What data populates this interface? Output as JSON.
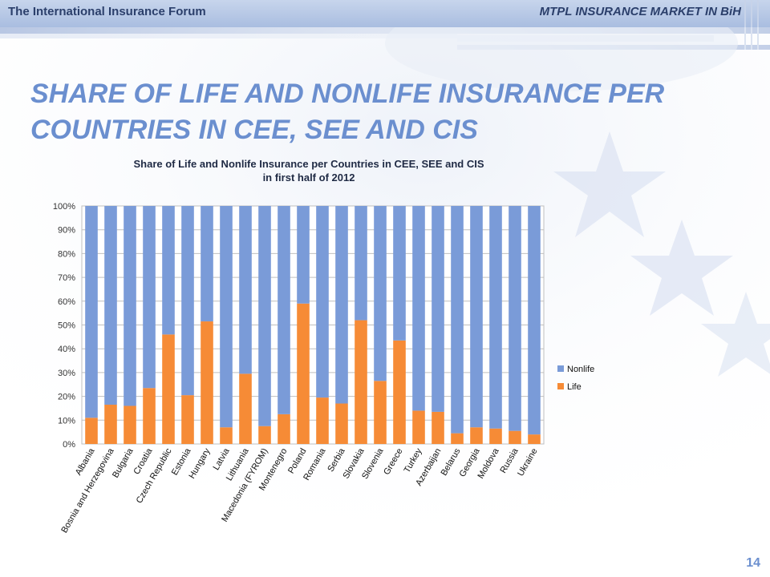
{
  "header": {
    "left_text": "The International Insurance Forum",
    "right_text": "MTPL INSURANCE MARKET IN BiH"
  },
  "slide": {
    "title_line1": "SHARE OF LIFE AND NONLIFE INSURANCE PER",
    "title_line2": "COUNTRIES IN CEE, SEE AND CIS",
    "page_number": "14"
  },
  "colors": {
    "nonlife": "#7a9bd8",
    "life": "#f68b36",
    "accent": "#6b8fcf",
    "header_text": "#2b3f6b"
  },
  "chart_data": {
    "type": "bar",
    "stacked": true,
    "title_line1": "Share of Life and Nonlife Insurance per Countries in CEE, SEE and CIS",
    "title_line2": "in first half of 2012",
    "categories": [
      "Albania",
      "Bosnia and Herzegovina",
      "Bulgaria",
      "Croatia",
      "Czech Republic",
      "Estonia",
      "Hungary",
      "Latvia",
      "Lithuania",
      "Macedonia (FYROM)",
      "Montenegro",
      "Poland",
      "Romania",
      "Serbia",
      "Slovakia",
      "Slovenia",
      "Greece",
      "Turkey",
      "Azerbaijan",
      "Belarus",
      "Georgia",
      "Moldova",
      "Russia",
      "Ukraine"
    ],
    "series": [
      {
        "name": "Life",
        "values": [
          11,
          16.5,
          16,
          23.5,
          46,
          20.5,
          51.5,
          7,
          29.5,
          7.5,
          12.5,
          59,
          19.5,
          17,
          52,
          26.5,
          43.5,
          14,
          13.5,
          4.5,
          7,
          6.5,
          5.5,
          4
        ]
      },
      {
        "name": "Nonlife",
        "values": [
          89,
          83.5,
          84,
          76.5,
          54,
          79.5,
          48.5,
          93,
          70.5,
          92.5,
          87.5,
          41,
          80.5,
          83,
          48,
          73.5,
          56.5,
          86,
          86.5,
          95.5,
          93,
          93.5,
          94.5,
          96
        ]
      }
    ],
    "ylim": [
      0,
      100
    ],
    "y_ticks": [
      "0%",
      "10%",
      "20%",
      "30%",
      "40%",
      "50%",
      "60%",
      "70%",
      "80%",
      "90%",
      "100%"
    ],
    "grid": true,
    "legend_position": "right",
    "legend": [
      "Nonlife",
      "Life"
    ]
  }
}
